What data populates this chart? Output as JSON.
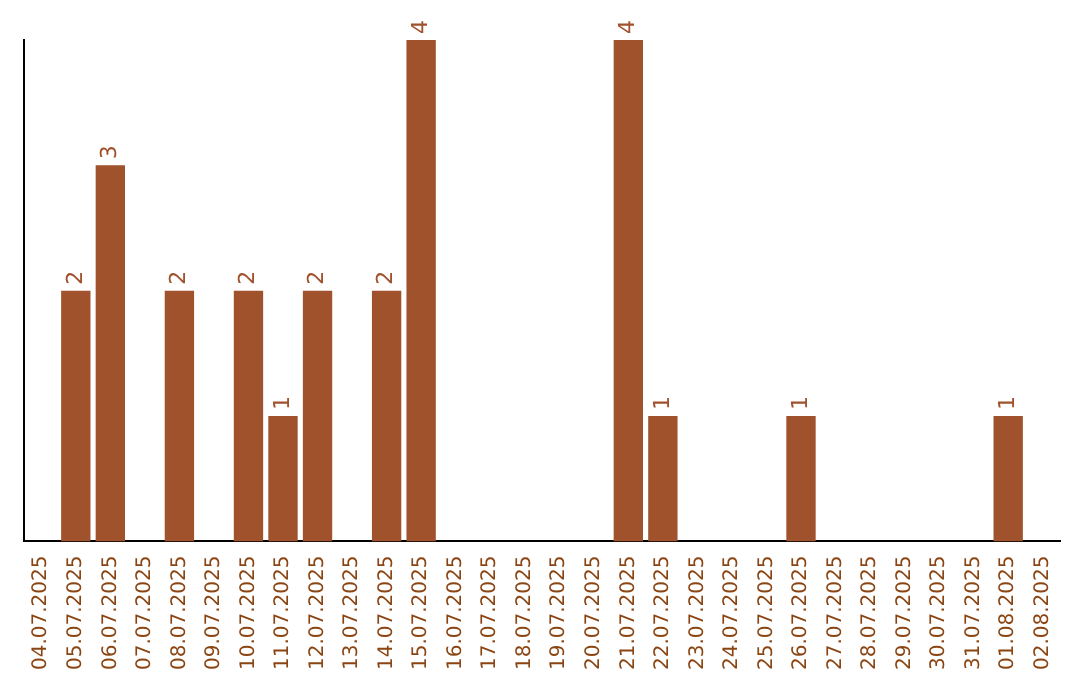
{
  "chart_data": {
    "type": "bar",
    "categories": [
      "04.07.2025",
      "05.07.2025",
      "06.07.2025",
      "07.07.2025",
      "08.07.2025",
      "09.07.2025",
      "10.07.2025",
      "11.07.2025",
      "12.07.2025",
      "13.07.2025",
      "14.07.2025",
      "15.07.2025",
      "16.07.2025",
      "17.07.2025",
      "18.07.2025",
      "19.07.2025",
      "20.07.2025",
      "21.07.2025",
      "22.07.2025",
      "23.07.2025",
      "24.07.2025",
      "25.07.2025",
      "26.07.2025",
      "27.07.2025",
      "28.07.2025",
      "29.07.2025",
      "30.07.2025",
      "31.07.2025",
      "01.08.2025",
      "02.08.2025"
    ],
    "values": [
      0,
      2,
      3,
      0,
      2,
      0,
      2,
      1,
      2,
      0,
      2,
      4,
      0,
      0,
      0,
      0,
      0,
      4,
      1,
      0,
      0,
      0,
      1,
      0,
      0,
      0,
      0,
      0,
      1,
      0
    ],
    "value_labels": [
      null,
      "2",
      "3",
      null,
      "2",
      null,
      "2",
      "1",
      "2",
      null,
      "2",
      "4",
      null,
      null,
      null,
      null,
      null,
      "4",
      "1",
      null,
      null,
      null,
      "1",
      null,
      null,
      null,
      null,
      null,
      "1",
      null
    ],
    "color": "#a0522d",
    "ylim": [
      0,
      4
    ],
    "tick_labels": "x",
    "grid": false,
    "legend": false
  }
}
